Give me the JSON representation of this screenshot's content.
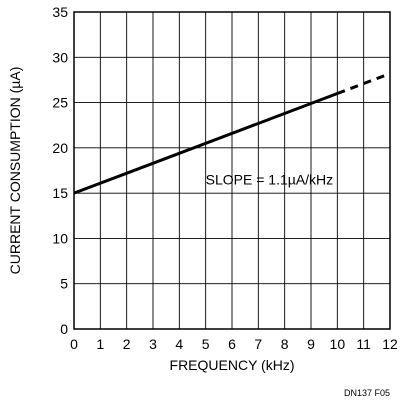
{
  "chart_data": {
    "type": "line",
    "title": "",
    "xlabel": "FREQUENCY (kHz)",
    "ylabel": "CURRENT CONSUMPTION (µA)",
    "xlim": [
      0,
      12
    ],
    "ylim": [
      0,
      35
    ],
    "x_ticks": [
      0,
      1,
      2,
      3,
      4,
      5,
      6,
      7,
      8,
      9,
      10,
      11,
      12
    ],
    "y_ticks": [
      0,
      5,
      10,
      15,
      20,
      25,
      30,
      35
    ],
    "grid": true,
    "series": [
      {
        "style": "solid",
        "x": [
          0,
          10
        ],
        "y": [
          15,
          26
        ]
      },
      {
        "style": "dashed",
        "x": [
          10,
          12
        ],
        "y": [
          26,
          28.2
        ]
      }
    ],
    "annotations": [
      {
        "text": "SLOPE = 1.1µA/kHz",
        "x": 5.0,
        "y": 16.5
      }
    ],
    "figure_id": "DN137 F05"
  }
}
